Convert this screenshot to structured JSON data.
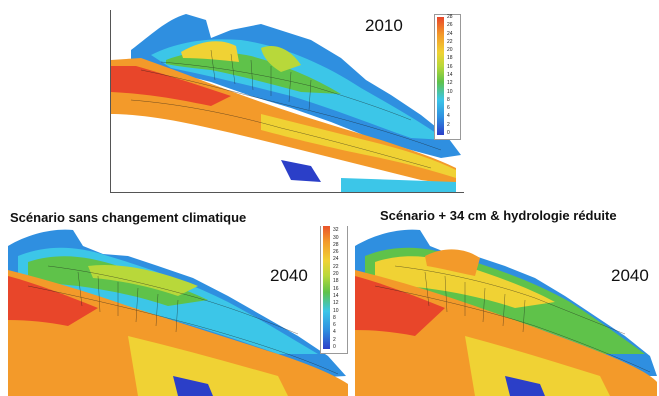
{
  "panels": {
    "top": {
      "year": "2010"
    },
    "left": {
      "title": "Scénario sans changement climatique",
      "year": "2040"
    },
    "right": {
      "title": "Scénario + 34 cm & hydrologie réduite",
      "year": "2040"
    }
  },
  "legend_top": {
    "ticks": [
      "28",
      "26",
      "24",
      "22",
      "20",
      "18",
      "16",
      "14",
      "12",
      "10",
      "8",
      "6",
      "4",
      "2",
      "0"
    ]
  },
  "legend_left": {
    "ticks": [
      "34",
      "32",
      "30",
      "28",
      "26",
      "24",
      "22",
      "20",
      "18",
      "16",
      "14",
      "12",
      "10",
      "8",
      "6",
      "4",
      "2",
      "0"
    ]
  },
  "colors": {
    "deep": "#2b3fc8",
    "blue": "#2f8fe0",
    "cyan": "#3cc6e8",
    "green": "#5fc24a",
    "yellowgreen": "#b8d83a",
    "yellow": "#f0d234",
    "orange": "#f39a2a",
    "red": "#e8462a"
  }
}
